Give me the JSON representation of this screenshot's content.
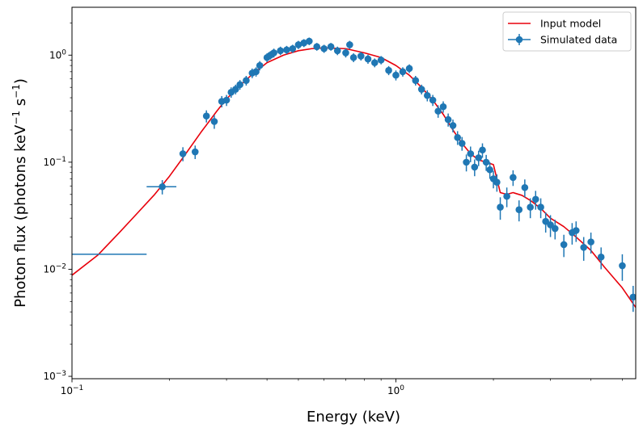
{
  "chart_data": {
    "type": "scatter",
    "xlabel": "Energy (keV)",
    "ylabel": "Photon flux (photons keV",
    "ylabel_sup1": "−1",
    "ylabel_mid": " s",
    "ylabel_sup2": "−1",
    "ylabel_end": ")",
    "xscale": "log",
    "yscale": "log",
    "xlim": [
      0.1,
      5.5
    ],
    "ylim": [
      0.00095,
      2.8
    ],
    "x_ticks": [
      {
        "value": 0.1,
        "base": "10",
        "exp": "−1"
      },
      {
        "value": 1,
        "base": "10",
        "exp": "0"
      }
    ],
    "y_ticks": [
      {
        "value": 0.001,
        "base": "10",
        "exp": "−3"
      },
      {
        "value": 0.01,
        "base": "10",
        "exp": "−2"
      },
      {
        "value": 0.1,
        "base": "10",
        "exp": "−1"
      },
      {
        "value": 1,
        "base": "10",
        "exp": "0"
      }
    ],
    "legend": {
      "position": "upper right",
      "entries": [
        "Input model",
        "Simulated data"
      ]
    },
    "colors": {
      "model": "#e8000b",
      "data": "#1f77b4"
    },
    "series": [
      {
        "name": "Input model",
        "type": "line",
        "x": [
          0.1,
          0.12,
          0.14,
          0.16,
          0.18,
          0.2,
          0.22,
          0.25,
          0.28,
          0.3,
          0.33,
          0.36,
          0.4,
          0.45,
          0.5,
          0.55,
          0.6,
          0.7,
          0.8,
          0.9,
          1.0,
          1.1,
          1.2,
          1.3,
          1.4,
          1.5,
          1.6,
          1.7,
          1.8,
          1.9,
          2.0,
          2.05,
          2.1,
          2.2,
          2.3,
          2.45,
          2.6,
          2.8,
          3.0,
          3.3,
          3.6,
          4.0,
          4.4,
          5.0,
          5.5
        ],
        "y": [
          0.0088,
          0.0135,
          0.022,
          0.034,
          0.05,
          0.074,
          0.11,
          0.19,
          0.3,
          0.39,
          0.52,
          0.66,
          0.85,
          1.0,
          1.1,
          1.15,
          1.17,
          1.15,
          1.05,
          0.95,
          0.8,
          0.65,
          0.5,
          0.38,
          0.28,
          0.2,
          0.15,
          0.12,
          0.105,
          0.1,
          0.095,
          0.07,
          0.052,
          0.05,
          0.052,
          0.049,
          0.044,
          0.037,
          0.03,
          0.025,
          0.02,
          0.015,
          0.0105,
          0.0067,
          0.0044
        ]
      },
      {
        "name": "Simulated data",
        "type": "errorbar",
        "x": [
          0.135,
          0.19,
          0.22,
          0.24,
          0.26,
          0.275,
          0.29,
          0.3,
          0.31,
          0.32,
          0.33,
          0.345,
          0.36,
          0.37,
          0.38,
          0.4,
          0.41,
          0.42,
          0.44,
          0.46,
          0.48,
          0.5,
          0.52,
          0.54,
          0.57,
          0.6,
          0.63,
          0.66,
          0.7,
          0.72,
          0.74,
          0.78,
          0.82,
          0.86,
          0.9,
          0.95,
          1.0,
          1.05,
          1.1,
          1.15,
          1.2,
          1.25,
          1.3,
          1.35,
          1.4,
          1.45,
          1.5,
          1.55,
          1.6,
          1.65,
          1.7,
          1.75,
          1.8,
          1.85,
          1.9,
          1.95,
          2.0,
          2.05,
          2.1,
          2.2,
          2.3,
          2.4,
          2.5,
          2.6,
          2.7,
          2.8,
          2.9,
          3.0,
          3.1,
          3.3,
          3.5,
          3.6,
          3.8,
          4.0,
          4.3,
          5.0,
          5.4
        ],
        "y": [
          0.0138,
          0.059,
          0.12,
          0.125,
          0.27,
          0.24,
          0.37,
          0.38,
          0.45,
          0.48,
          0.53,
          0.58,
          0.68,
          0.7,
          0.8,
          0.95,
          1.0,
          1.05,
          1.1,
          1.12,
          1.15,
          1.25,
          1.3,
          1.35,
          1.2,
          1.15,
          1.2,
          1.1,
          1.05,
          1.25,
          0.95,
          0.98,
          0.92,
          0.85,
          0.9,
          0.72,
          0.65,
          0.7,
          0.75,
          0.58,
          0.48,
          0.42,
          0.38,
          0.3,
          0.33,
          0.25,
          0.22,
          0.17,
          0.15,
          0.1,
          0.12,
          0.09,
          0.11,
          0.13,
          0.1,
          0.085,
          0.07,
          0.065,
          0.038,
          0.048,
          0.072,
          0.036,
          0.058,
          0.038,
          0.045,
          0.038,
          0.028,
          0.026,
          0.024,
          0.017,
          0.022,
          0.023,
          0.016,
          0.018,
          0.013,
          0.0108,
          0.0055
        ],
        "xerr_lo": [
          0.035,
          0.02,
          0.005,
          0.005,
          0.005,
          0.004,
          0.005,
          0.004,
          0.004,
          0.004,
          0.004,
          0.004,
          0.004,
          0.004,
          0.004,
          0.004,
          0.004,
          0.004,
          0.005,
          0.005,
          0.005,
          0.005,
          0.005,
          0.005,
          0.005,
          0.005,
          0.005,
          0.005,
          0.005,
          0.005,
          0.005,
          0.006,
          0.006,
          0.006,
          0.006,
          0.007,
          0.007,
          0.008,
          0.008,
          0.009,
          0.01,
          0.01,
          0.01,
          0.01,
          0.01,
          0.01,
          0.01,
          0.01,
          0.01,
          0.012,
          0.012,
          0.012,
          0.012,
          0.012,
          0.012,
          0.012,
          0.014,
          0.014,
          0.014,
          0.015,
          0.015,
          0.015,
          0.02,
          0.02,
          0.02,
          0.02,
          0.02,
          0.025,
          0.025,
          0.03,
          0.03,
          0.03,
          0.04,
          0.05,
          0.06,
          0.1,
          0.1
        ],
        "xerr_hi": [
          0.035,
          0.02,
          0.005,
          0.005,
          0.005,
          0.004,
          0.005,
          0.004,
          0.004,
          0.004,
          0.004,
          0.004,
          0.004,
          0.004,
          0.004,
          0.004,
          0.004,
          0.004,
          0.005,
          0.005,
          0.005,
          0.005,
          0.005,
          0.005,
          0.005,
          0.005,
          0.005,
          0.005,
          0.005,
          0.005,
          0.005,
          0.006,
          0.006,
          0.006,
          0.006,
          0.007,
          0.007,
          0.008,
          0.008,
          0.009,
          0.01,
          0.01,
          0.01,
          0.01,
          0.01,
          0.01,
          0.01,
          0.01,
          0.01,
          0.012,
          0.012,
          0.012,
          0.012,
          0.012,
          0.012,
          0.012,
          0.014,
          0.014,
          0.014,
          0.015,
          0.015,
          0.015,
          0.02,
          0.02,
          0.02,
          0.02,
          0.02,
          0.025,
          0.025,
          0.03,
          0.03,
          0.03,
          0.04,
          0.05,
          0.06,
          0.1,
          0.1
        ],
        "yerr": [
          0.0,
          0.009,
          0.018,
          0.018,
          0.035,
          0.035,
          0.045,
          0.045,
          0.05,
          0.05,
          0.055,
          0.06,
          0.07,
          0.07,
          0.08,
          0.09,
          0.09,
          0.1,
          0.1,
          0.1,
          0.1,
          0.11,
          0.11,
          0.11,
          0.1,
          0.1,
          0.1,
          0.1,
          0.1,
          0.11,
          0.09,
          0.09,
          0.09,
          0.08,
          0.08,
          0.07,
          0.07,
          0.07,
          0.07,
          0.06,
          0.05,
          0.05,
          0.045,
          0.04,
          0.04,
          0.035,
          0.03,
          0.025,
          0.022,
          0.018,
          0.02,
          0.016,
          0.018,
          0.02,
          0.017,
          0.015,
          0.013,
          0.012,
          0.009,
          0.01,
          0.012,
          0.008,
          0.011,
          0.008,
          0.009,
          0.008,
          0.006,
          0.006,
          0.005,
          0.004,
          0.005,
          0.005,
          0.004,
          0.004,
          0.003,
          0.003,
          0.0015
        ]
      }
    ]
  }
}
